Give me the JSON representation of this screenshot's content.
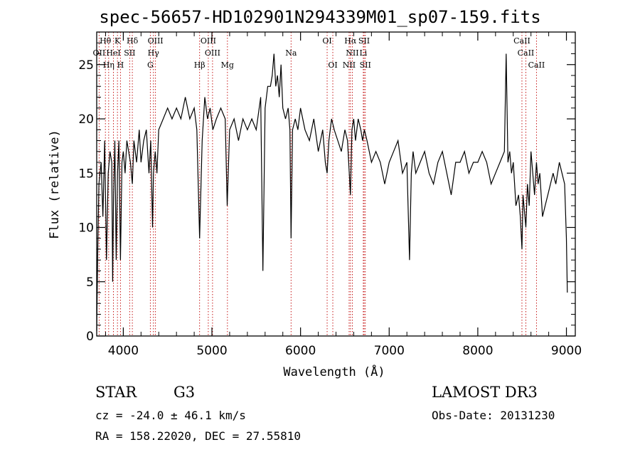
{
  "header": {
    "title": "spec-56657-HD102901N294339M01_sp07-159.fits"
  },
  "info": {
    "class": "STAR",
    "subclass": "G3",
    "survey": "LAMOST DR3",
    "cz": "cz = -24.0 ± 46.1 km/s",
    "obs_date": "Obs-Date: 20131230",
    "coords": "RA = 158.22020, DEC =  27.55810"
  },
  "chart_data": {
    "type": "line",
    "title": "spec-56657-HD102901N294339M01_sp07-159.fits",
    "xlabel": "Wavelength (Å)",
    "ylabel": "Flux (relative)",
    "xlim": [
      3700,
      9100
    ],
    "ylim": [
      0,
      28
    ],
    "xticks": [
      4000,
      5000,
      6000,
      7000,
      8000,
      9000
    ],
    "yticks": [
      0,
      5,
      10,
      15,
      20,
      25
    ],
    "series": [
      {
        "name": "flux",
        "x": [
          3700,
          3712,
          3725,
          3750,
          3770,
          3790,
          3810,
          3830,
          3850,
          3870,
          3880,
          3890,
          3905,
          3920,
          3935,
          3950,
          3968,
          3985,
          4000,
          4020,
          4040,
          4060,
          4080,
          4102,
          4120,
          4150,
          4180,
          4200,
          4230,
          4260,
          4290,
          4310,
          4330,
          4340,
          4360,
          4380,
          4400,
          4450,
          4500,
          4550,
          4600,
          4650,
          4700,
          4750,
          4800,
          4830,
          4861,
          4890,
          4920,
          4950,
          4980,
          5010,
          5050,
          5100,
          5150,
          5172,
          5200,
          5250,
          5300,
          5350,
          5400,
          5450,
          5500,
          5550,
          5575,
          5600,
          5630,
          5660,
          5680,
          5700,
          5720,
          5740,
          5760,
          5780,
          5800,
          5830,
          5860,
          5880,
          5893,
          5910,
          5940,
          5970,
          6000,
          6050,
          6100,
          6150,
          6200,
          6250,
          6280,
          6300,
          6320,
          6350,
          6380,
          6420,
          6460,
          6500,
          6530,
          6563,
          6580,
          6600,
          6620,
          6650,
          6680,
          6700,
          6720,
          6750,
          6800,
          6850,
          6900,
          6950,
          7000,
          7050,
          7100,
          7150,
          7200,
          7230,
          7250,
          7270,
          7300,
          7350,
          7400,
          7450,
          7500,
          7550,
          7600,
          7650,
          7700,
          7750,
          7800,
          7850,
          7900,
          7950,
          8000,
          8050,
          8100,
          8150,
          8200,
          8250,
          8300,
          8320,
          8340,
          8360,
          8380,
          8400,
          8430,
          8460,
          8480,
          8498,
          8510,
          8542,
          8560,
          8580,
          8600,
          8620,
          8640,
          8662,
          8680,
          8700,
          8730,
          8760,
          8790,
          8820,
          8850,
          8880,
          8920,
          8950,
          8980,
          9000,
          9010
        ],
        "values": [
          0.5,
          8,
          14,
          16,
          11,
          18,
          7,
          15,
          17,
          16,
          5,
          13,
          18,
          7,
          15,
          18,
          7,
          16,
          17,
          15,
          18,
          17,
          16,
          14,
          18,
          16,
          19,
          16,
          18,
          19,
          15,
          18,
          10,
          15,
          17,
          15,
          19,
          20,
          21,
          20,
          21,
          20,
          22,
          20,
          21,
          19,
          9,
          18,
          22,
          20,
          21,
          19,
          20,
          21,
          20,
          12,
          19,
          20,
          18,
          20,
          19,
          20,
          19,
          22,
          6,
          21,
          23,
          23,
          24,
          26,
          23,
          24,
          22,
          25,
          21,
          20,
          21,
          19,
          9,
          19,
          20,
          19,
          21,
          19,
          18,
          20,
          17,
          19,
          16,
          15,
          18,
          20,
          19,
          18,
          17,
          19,
          18,
          13,
          19,
          20,
          18,
          20,
          19,
          18,
          19,
          18,
          16,
          17,
          16,
          14,
          16,
          17,
          18,
          15,
          16,
          7,
          15,
          17,
          15,
          16,
          17,
          15,
          14,
          16,
          17,
          15,
          13,
          16,
          16,
          17,
          15,
          16,
          16,
          17,
          16,
          14,
          15,
          16,
          17,
          26,
          16,
          17,
          15,
          16,
          12,
          13,
          11,
          8,
          13,
          10,
          14,
          12,
          17,
          15,
          13,
          16,
          14,
          15,
          11,
          12,
          13,
          14,
          15,
          14,
          16,
          15,
          14,
          9,
          4
        ],
        "color": "#000000"
      }
    ],
    "lines": [
      {
        "label": "Hθ",
        "wave": 3798,
        "row": 1
      },
      {
        "label": "K",
        "wave": 3934,
        "row": 1
      },
      {
        "label": "Hδ",
        "wave": 4102,
        "row": 1
      },
      {
        "label": "OIII",
        "wave": 4363,
        "row": 1
      },
      {
        "label": "OIII",
        "wave": 4959,
        "row": 1
      },
      {
        "label": "OII",
        "wave": 3727,
        "row": 2
      },
      {
        "label": "HeI",
        "wave": 3889,
        "row": 2
      },
      {
        "label": "SII",
        "wave": 4072,
        "row": 2
      },
      {
        "label": "Hγ",
        "wave": 4340,
        "row": 2
      },
      {
        "label": "OIII",
        "wave": 5007,
        "row": 2
      },
      {
        "label": "Na",
        "wave": 5893,
        "row": 2
      },
      {
        "label": "OI",
        "wave": 6300,
        "row": 1
      },
      {
        "label": "Hα",
        "wave": 6563,
        "row": 1
      },
      {
        "label": "SII",
        "wave": 6717,
        "row": 1
      },
      {
        "label": "NII",
        "wave": 6584,
        "row": 2
      },
      {
        "label": "Li",
        "wave": 6708,
        "row": 2
      },
      {
        "label": "CaII",
        "wave": 8498,
        "row": 1
      },
      {
        "label": "CaII",
        "wave": 8542,
        "row": 2
      },
      {
        "label": "Hη",
        "wave": 3835,
        "row": 3
      },
      {
        "label": "H",
        "wave": 3968,
        "row": 3
      },
      {
        "label": "G",
        "wave": 4305,
        "row": 3
      },
      {
        "label": "Hβ",
        "wave": 4861,
        "row": 3
      },
      {
        "label": "Mg",
        "wave": 5175,
        "row": 3
      },
      {
        "label": "OI",
        "wave": 6364,
        "row": 3
      },
      {
        "label": "NII",
        "wave": 6548,
        "row": 3
      },
      {
        "label": "SII",
        "wave": 6731,
        "row": 3
      },
      {
        "label": "CaII",
        "wave": 8662,
        "row": 3
      }
    ]
  }
}
